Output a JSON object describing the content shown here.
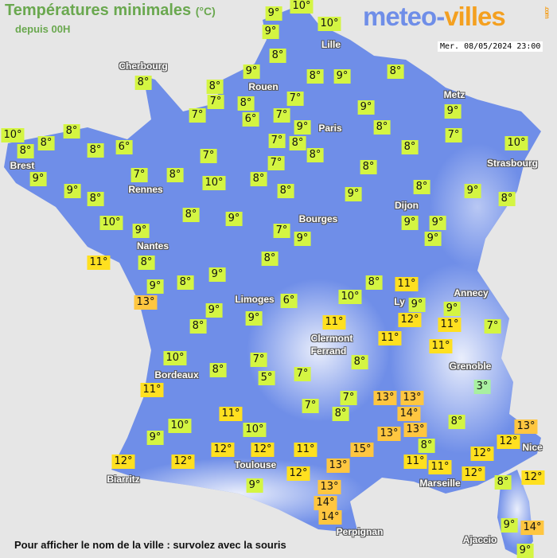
{
  "header": {
    "title": "Températures minimales",
    "unit": "(°C)",
    "subtitle": "depuis 00H",
    "datetime": "Mer. 08/05/2024 23:00"
  },
  "logo": {
    "part1": "meteo-",
    "part2": "villes",
    "suffix": ".com"
  },
  "footer": {
    "hint": "Pour afficher le nom de la ville : survolez avec la souris"
  },
  "colors": {
    "background": "#e6e6e6",
    "land": "#6f8ee8",
    "cold": "#a8f0a0",
    "cool": "#d4f542",
    "mild": "#ffe020",
    "warm": "#ffc640",
    "title": "#6aa84f",
    "logo_blue": "#6f8ee8",
    "logo_orange": "#f4a020"
  },
  "cities": [
    "Cherbourg",
    "Lille",
    "Rouen",
    "Paris",
    "Metz",
    "Brest",
    "Rennes",
    "Strasbourg",
    "Dijon",
    "Nantes",
    "Bourges",
    "Limoges",
    "Annecy",
    "Ly",
    "Clermont",
    "Ferrand",
    "Grenoble",
    "Bordeaux",
    "Nice",
    "Toulouse",
    "Biarritz",
    "Marseille",
    "Perpignan",
    "Ajaccio"
  ],
  "temperatures": [
    "9°",
    "10°",
    "9°",
    "10°",
    "8°",
    "9°",
    "8°",
    "9°",
    "8°",
    "8°",
    "8°",
    "7°",
    "8°",
    "7°",
    "7°",
    "6°",
    "7°",
    "9°",
    "9°",
    "9°",
    "8°",
    "10°",
    "8°",
    "8°",
    "8°",
    "6°",
    "7°",
    "8°",
    "8°",
    "7°",
    "7°",
    "8°",
    "8°",
    "10°",
    "9°",
    "7°",
    "8°",
    "7°",
    "8°",
    "9°",
    "8°",
    "10°",
    "8°",
    "8°",
    "9°",
    "8°",
    "9°",
    "8°",
    "8°",
    "9°",
    "10°",
    "9°",
    "7°",
    "9°",
    "9°",
    "9°",
    "9°",
    "11°",
    "8°",
    "8°",
    "8°",
    "9°",
    "8°",
    "11°",
    "9°",
    "13°",
    "6°",
    "10°",
    "9°",
    "9°",
    "9°",
    "9°",
    "12°",
    "11°",
    "8°",
    "11°",
    "7°",
    "11°",
    "11°",
    "10°",
    "7°",
    "8°",
    "8°",
    "5°",
    "7°",
    "11°",
    "3°",
    "7°",
    "13°",
    "13°",
    "7°",
    "8°",
    "14°",
    "11°",
    "8°",
    "10°",
    "13°",
    "13°",
    "13°",
    "9°",
    "10°",
    "12°",
    "8°",
    "15°",
    "12°",
    "12°",
    "11°",
    "12°",
    "11°",
    "11°",
    "12°",
    "12°",
    "13°",
    "12°",
    "12°",
    "12°",
    "8°",
    "9°",
    "13°",
    "14°",
    "14°",
    "9°",
    "14°",
    "9°"
  ]
}
